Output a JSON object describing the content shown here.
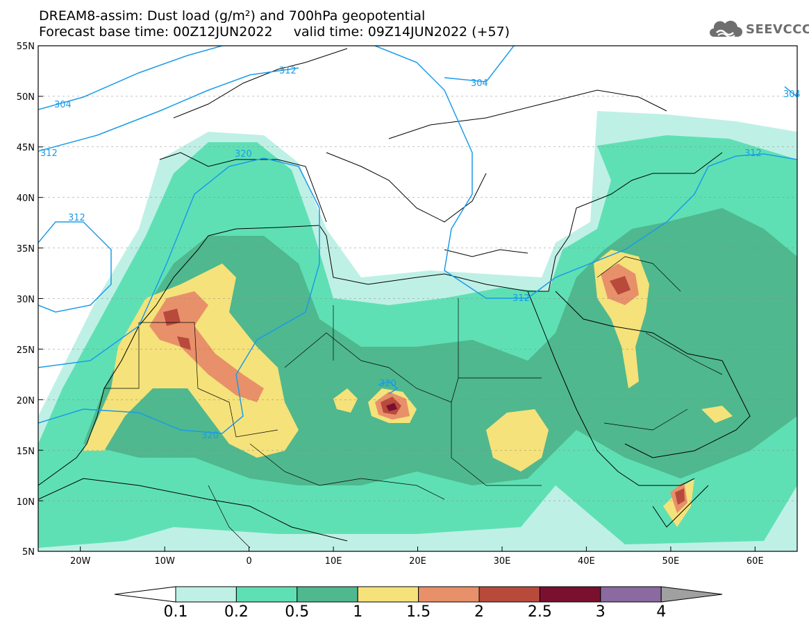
{
  "header": {
    "title_line1": "DREAM8-assim: Dust load (g/m²) and 700hPa geopotential",
    "title_line2": "Forecast base time: 00Z12JUN2022     valid time: 09Z14JUN2022 (+57)",
    "logo_text": "SEEVCCC",
    "logo_icon": "cloud-icon"
  },
  "map": {
    "lon_range": [
      -25,
      65
    ],
    "lat_range": [
      5,
      55
    ],
    "lat_ticks": [
      "55N",
      "50N",
      "45N",
      "40N",
      "35N",
      "30N",
      "25N",
      "20N",
      "15N",
      "10N",
      "5N"
    ],
    "lon_ticks": [
      "20W",
      "10W",
      "0",
      "10E",
      "20E",
      "30E",
      "40E",
      "50E",
      "60E"
    ],
    "contour_labels": [
      "304",
      "312",
      "304",
      "312",
      "320",
      "312",
      "312",
      "320",
      "320",
      "304",
      "312"
    ]
  },
  "colorbar": {
    "labels": [
      "0.1",
      "0.2",
      "0.5",
      "1",
      "1.5",
      "2",
      "2.5",
      "3",
      "4"
    ],
    "colors": [
      "#ffffff",
      "#bff0e6",
      "#5fe0b4",
      "#4fb88e",
      "#f5e27a",
      "#e8906a",
      "#b84a3c",
      "#7a1030",
      "#8a6aa0",
      "#a0a0a0"
    ]
  }
}
